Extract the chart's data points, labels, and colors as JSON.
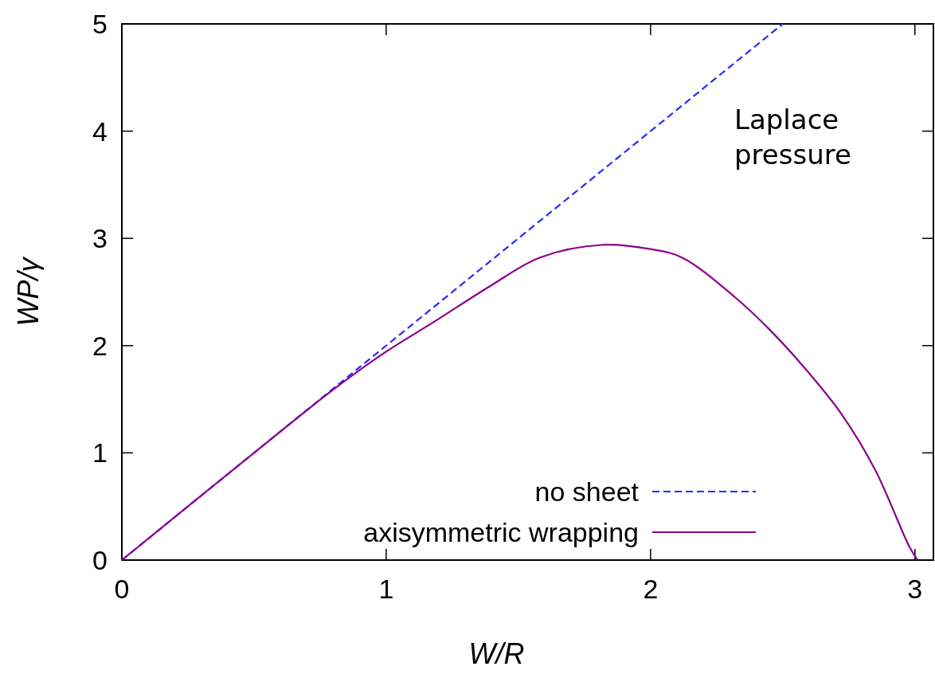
{
  "chart_data": {
    "type": "line",
    "xlabel": "W/R",
    "ylabel": "WP/γ",
    "xlim": [
      0,
      3.07
    ],
    "ylim": [
      0,
      5
    ],
    "xticks": [
      0,
      1,
      2,
      3
    ],
    "yticks": [
      0,
      1,
      2,
      3,
      4,
      5
    ],
    "grid": false,
    "legend": "bottom right",
    "annotations": [
      "Laplace\npressure"
    ],
    "series": [
      {
        "name": "no sheet",
        "color": "#2a2aff",
        "line_style": "dashed",
        "x": [
          0,
          2.5
        ],
        "values": [
          0,
          5
        ]
      },
      {
        "name": "axisymmetric wrapping",
        "color": "#8b008b",
        "line_style": "solid",
        "x": [
          0,
          0.5,
          0.8,
          0.985,
          1.18,
          1.39,
          1.58,
          1.82,
          2.0,
          2.12,
          2.32,
          2.45,
          2.58,
          2.72,
          2.85,
          2.98,
          3.01
        ],
        "values": [
          0,
          1.0,
          1.59,
          1.92,
          2.22,
          2.55,
          2.82,
          2.94,
          2.9,
          2.82,
          2.45,
          2.15,
          1.8,
          1.37,
          0.84,
          0.12,
          0
        ]
      }
    ]
  }
}
